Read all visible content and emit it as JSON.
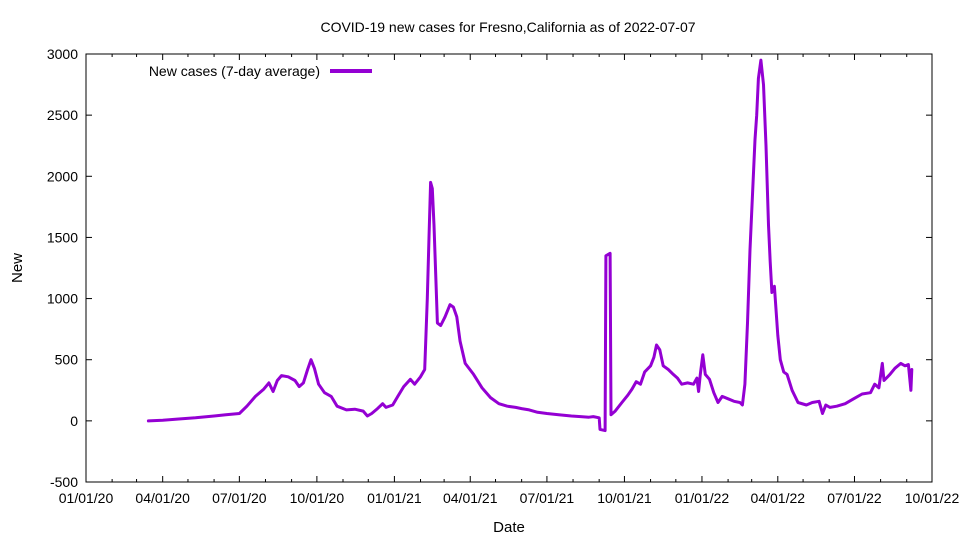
{
  "chart_data": {
    "type": "line",
    "title": "COVID-19 new cases for Fresno,California as of 2022-07-07",
    "xlabel": "Date",
    "ylabel": "New",
    "xlim": [
      "2020-01-01",
      "2022-10-01"
    ],
    "ylim": [
      -500,
      3000
    ],
    "x_ticks": [
      "01/01/20",
      "04/01/20",
      "07/01/20",
      "10/01/20",
      "01/01/21",
      "04/01/21",
      "07/01/21",
      "10/01/21",
      "01/01/22",
      "04/01/22",
      "07/01/22",
      "10/01/22"
    ],
    "y_ticks": [
      -500,
      0,
      500,
      1000,
      1500,
      2000,
      2500,
      3000
    ],
    "grid": false,
    "legend_position": "top-left",
    "series": [
      {
        "name": "New cases (7-day average)",
        "color": "#9400d3",
        "points": [
          [
            "2020-03-15",
            0
          ],
          [
            "2020-04-01",
            5
          ],
          [
            "2020-04-20",
            15
          ],
          [
            "2020-05-10",
            25
          ],
          [
            "2020-06-01",
            40
          ],
          [
            "2020-06-15",
            50
          ],
          [
            "2020-07-01",
            60
          ],
          [
            "2020-07-10",
            120
          ],
          [
            "2020-07-20",
            200
          ],
          [
            "2020-07-30",
            260
          ],
          [
            "2020-08-05",
            310
          ],
          [
            "2020-08-10",
            240
          ],
          [
            "2020-08-15",
            330
          ],
          [
            "2020-08-20",
            370
          ],
          [
            "2020-08-28",
            360
          ],
          [
            "2020-09-05",
            330
          ],
          [
            "2020-09-10",
            280
          ],
          [
            "2020-09-15",
            310
          ],
          [
            "2020-09-20",
            420
          ],
          [
            "2020-09-24",
            500
          ],
          [
            "2020-09-28",
            430
          ],
          [
            "2020-10-03",
            300
          ],
          [
            "2020-10-10",
            230
          ],
          [
            "2020-10-18",
            200
          ],
          [
            "2020-10-25",
            120
          ],
          [
            "2020-11-05",
            90
          ],
          [
            "2020-11-15",
            95
          ],
          [
            "2020-11-25",
            80
          ],
          [
            "2020-11-30",
            40
          ],
          [
            "2020-12-05",
            60
          ],
          [
            "2020-12-12",
            100
          ],
          [
            "2020-12-18",
            140
          ],
          [
            "2020-12-22",
            110
          ],
          [
            "2020-12-30",
            130
          ],
          [
            "2021-01-05",
            200
          ],
          [
            "2021-01-12",
            280
          ],
          [
            "2021-01-20",
            340
          ],
          [
            "2021-01-25",
            300
          ],
          [
            "2021-02-01",
            360
          ],
          [
            "2021-02-06",
            420
          ],
          [
            "2021-02-09",
            1000
          ],
          [
            "2021-02-11",
            1500
          ],
          [
            "2021-02-13",
            1950
          ],
          [
            "2021-02-15",
            1900
          ],
          [
            "2021-02-17",
            1600
          ],
          [
            "2021-02-19",
            1200
          ],
          [
            "2021-02-21",
            800
          ],
          [
            "2021-02-25",
            780
          ],
          [
            "2021-03-02",
            850
          ],
          [
            "2021-03-08",
            950
          ],
          [
            "2021-03-12",
            930
          ],
          [
            "2021-03-16",
            850
          ],
          [
            "2021-03-20",
            650
          ],
          [
            "2021-03-26",
            470
          ],
          [
            "2021-04-05",
            380
          ],
          [
            "2021-04-15",
            270
          ],
          [
            "2021-04-25",
            190
          ],
          [
            "2021-05-05",
            140
          ],
          [
            "2021-05-15",
            120
          ],
          [
            "2021-05-25",
            110
          ],
          [
            "2021-06-01",
            100
          ],
          [
            "2021-06-10",
            90
          ],
          [
            "2021-06-20",
            70
          ],
          [
            "2021-07-01",
            60
          ],
          [
            "2021-07-15",
            50
          ],
          [
            "2021-07-30",
            40
          ],
          [
            "2021-08-10",
            35
          ],
          [
            "2021-08-20",
            30
          ],
          [
            "2021-08-25",
            35
          ],
          [
            "2021-09-01",
            25
          ],
          [
            "2021-09-02",
            -70
          ],
          [
            "2021-09-08",
            -80
          ],
          [
            "2021-09-09",
            1350
          ],
          [
            "2021-09-14",
            1370
          ],
          [
            "2021-09-15",
            50
          ],
          [
            "2021-09-20",
            80
          ],
          [
            "2021-09-28",
            150
          ],
          [
            "2021-10-05",
            210
          ],
          [
            "2021-10-10",
            260
          ],
          [
            "2021-10-15",
            320
          ],
          [
            "2021-10-20",
            300
          ],
          [
            "2021-10-25",
            400
          ],
          [
            "2021-11-01",
            450
          ],
          [
            "2021-11-05",
            520
          ],
          [
            "2021-11-08",
            620
          ],
          [
            "2021-11-12",
            580
          ],
          [
            "2021-11-16",
            450
          ],
          [
            "2021-11-22",
            420
          ],
          [
            "2021-11-28",
            380
          ],
          [
            "2021-12-03",
            350
          ],
          [
            "2021-12-08",
            300
          ],
          [
            "2021-12-15",
            310
          ],
          [
            "2021-12-22",
            300
          ],
          [
            "2021-12-26",
            350
          ],
          [
            "2021-12-28",
            240
          ],
          [
            "2021-12-30",
            380
          ],
          [
            "2022-01-02",
            540
          ],
          [
            "2022-01-05",
            380
          ],
          [
            "2022-01-10",
            340
          ],
          [
            "2022-01-15",
            230
          ],
          [
            "2022-01-20",
            150
          ],
          [
            "2022-01-25",
            200
          ],
          [
            "2022-02-01",
            180
          ],
          [
            "2022-02-08",
            160
          ],
          [
            "2022-02-15",
            150
          ],
          [
            "2022-02-18",
            130
          ],
          [
            "2022-02-21",
            300
          ],
          [
            "2022-02-24",
            800
          ],
          [
            "2022-02-27",
            1400
          ],
          [
            "2022-03-02",
            1850
          ],
          [
            "2022-03-05",
            2300
          ],
          [
            "2022-03-07",
            2500
          ],
          [
            "2022-03-09",
            2800
          ],
          [
            "2022-03-12",
            2950
          ],
          [
            "2022-03-15",
            2750
          ],
          [
            "2022-03-18",
            2250
          ],
          [
            "2022-03-21",
            1600
          ],
          [
            "2022-03-23",
            1300
          ],
          [
            "2022-03-25",
            1050
          ],
          [
            "2022-03-28",
            1100
          ],
          [
            "2022-04-01",
            700
          ],
          [
            "2022-04-04",
            500
          ],
          [
            "2022-04-08",
            400
          ],
          [
            "2022-04-12",
            380
          ],
          [
            "2022-04-18",
            250
          ],
          [
            "2022-04-25",
            150
          ],
          [
            "2022-05-05",
            130
          ],
          [
            "2022-05-12",
            150
          ],
          [
            "2022-05-20",
            160
          ],
          [
            "2022-05-24",
            60
          ],
          [
            "2022-05-28",
            130
          ],
          [
            "2022-06-02",
            110
          ],
          [
            "2022-06-10",
            120
          ],
          [
            "2022-06-20",
            140
          ],
          [
            "2022-06-30",
            180
          ],
          [
            "2022-07-10",
            220
          ],
          [
            "2022-07-20",
            230
          ],
          [
            "2022-07-25",
            300
          ],
          [
            "2022-07-30",
            270
          ],
          [
            "2022-08-03",
            470
          ],
          [
            "2022-08-05",
            330
          ],
          [
            "2022-08-12",
            380
          ],
          [
            "2022-08-18",
            430
          ],
          [
            "2022-08-25",
            470
          ],
          [
            "2022-08-30",
            450
          ],
          [
            "2022-09-03",
            460
          ],
          [
            "2022-09-06",
            250
          ],
          [
            "2022-09-07",
            420
          ]
        ]
      }
    ]
  }
}
